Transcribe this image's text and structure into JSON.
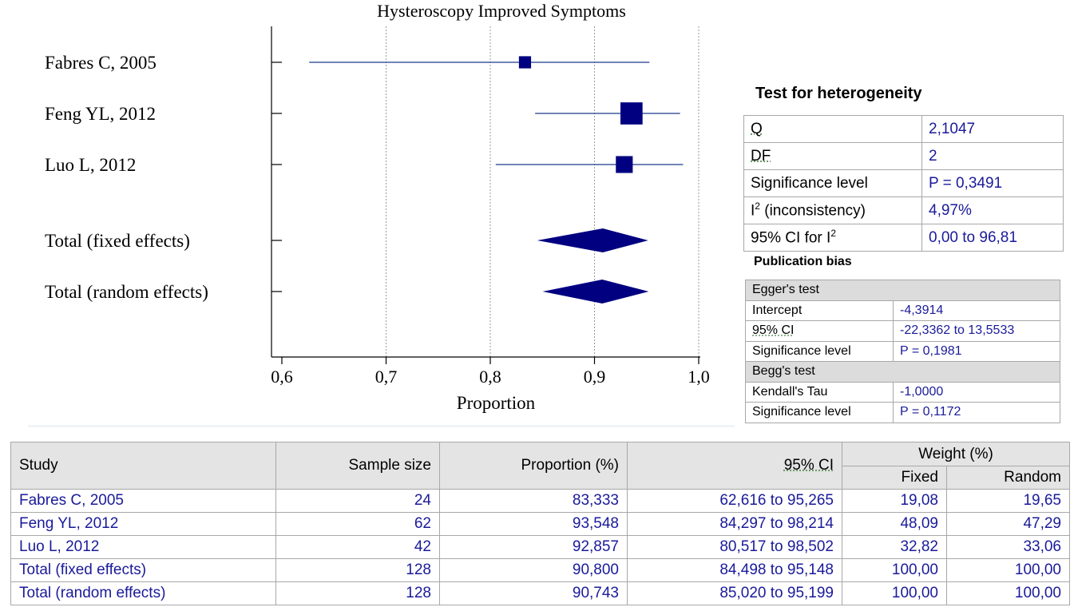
{
  "chart_data": {
    "type": "forest",
    "title": "Hysteroscopy Improved Symptoms",
    "xlabel": "Proportion",
    "xlim": [
      0.6,
      1.0
    ],
    "ticks": [
      {
        "value": 0.6,
        "label": "0,6"
      },
      {
        "value": 0.7,
        "label": "0,7"
      },
      {
        "value": 0.8,
        "label": "0,8"
      },
      {
        "value": 0.9,
        "label": "0,9"
      },
      {
        "value": 1.0,
        "label": "1,0"
      }
    ],
    "grid": true,
    "studies": [
      {
        "label": "Fabres C, 2005",
        "estimate": 0.8333,
        "ci": [
          0.6262,
          0.9527
        ],
        "weight": 19.08
      },
      {
        "label": "Feng YL, 2012",
        "estimate": 0.9355,
        "ci": [
          0.843,
          0.9821
        ],
        "weight": 48.09
      },
      {
        "label": "Luo L, 2012",
        "estimate": 0.9286,
        "ci": [
          0.8052,
          0.985
        ],
        "weight": 32.82
      }
    ],
    "pooled": [
      {
        "label": "Total (fixed effects)",
        "estimate": 0.908,
        "ci": [
          0.845,
          0.9515
        ]
      },
      {
        "label": "Total (random effects)",
        "estimate": 0.9074,
        "ci": [
          0.8502,
          0.952
        ]
      }
    ],
    "colors": {
      "marker": "#000080",
      "line": "#1a3a8a"
    }
  },
  "heterogeneity": {
    "title": "Test for heterogeneity",
    "rows": [
      {
        "key": "Q",
        "value": "2,1047"
      },
      {
        "key": "DF",
        "value": "2"
      },
      {
        "key": "Significance level",
        "value": "P = 0,3491"
      },
      {
        "key_pre": "I",
        "key_sup": "2",
        "key_post": " (inconsistency)",
        "value": "4,97%"
      },
      {
        "key_pre": "95% CI for I",
        "key_sup": "2",
        "key_post": "",
        "value": "0,00 to 96,81"
      }
    ]
  },
  "publication_bias": {
    "title": "Publication bias",
    "egger": {
      "header": "Egger's test",
      "rows": [
        {
          "key": "Intercept",
          "value": "-4,3914"
        },
        {
          "key": "95% CI",
          "value": "-22,3362 to 13,5533"
        },
        {
          "key": "Significance level",
          "value": "P = 0,1981"
        }
      ]
    },
    "begg": {
      "header": "Begg's test",
      "rows": [
        {
          "key": "Kendall's Tau",
          "value": "-1,0000"
        },
        {
          "key": "Significance level",
          "value": "P = 0,1172"
        }
      ]
    }
  },
  "table": {
    "headers": {
      "study": "Study",
      "sample_size": "Sample size",
      "proportion": "Proportion (%)",
      "ci": "95% CI",
      "weight": "Weight (%)",
      "fixed": "Fixed",
      "random": "Random"
    },
    "rows": [
      {
        "study": "Fabres C, 2005",
        "n": "24",
        "prop": "83,333",
        "ci": "62,616 to 95,265",
        "fixed": "19,08",
        "random": "19,65"
      },
      {
        "study": "Feng YL, 2012",
        "n": "62",
        "prop": "93,548",
        "ci": "84,297 to 98,214",
        "fixed": "48,09",
        "random": "47,29"
      },
      {
        "study": "Luo L, 2012",
        "n": "42",
        "prop": "92,857",
        "ci": "80,517 to 98,502",
        "fixed": "32,82",
        "random": "33,06"
      },
      {
        "study": "Total (fixed effects)",
        "n": "128",
        "prop": "90,800",
        "ci": "84,498 to 95,148",
        "fixed": "100,00",
        "random": "100,00"
      },
      {
        "study": "Total (random effects)",
        "n": "128",
        "prop": "90,743",
        "ci": "85,020 to 95,199",
        "fixed": "100,00",
        "random": "100,00"
      }
    ]
  }
}
